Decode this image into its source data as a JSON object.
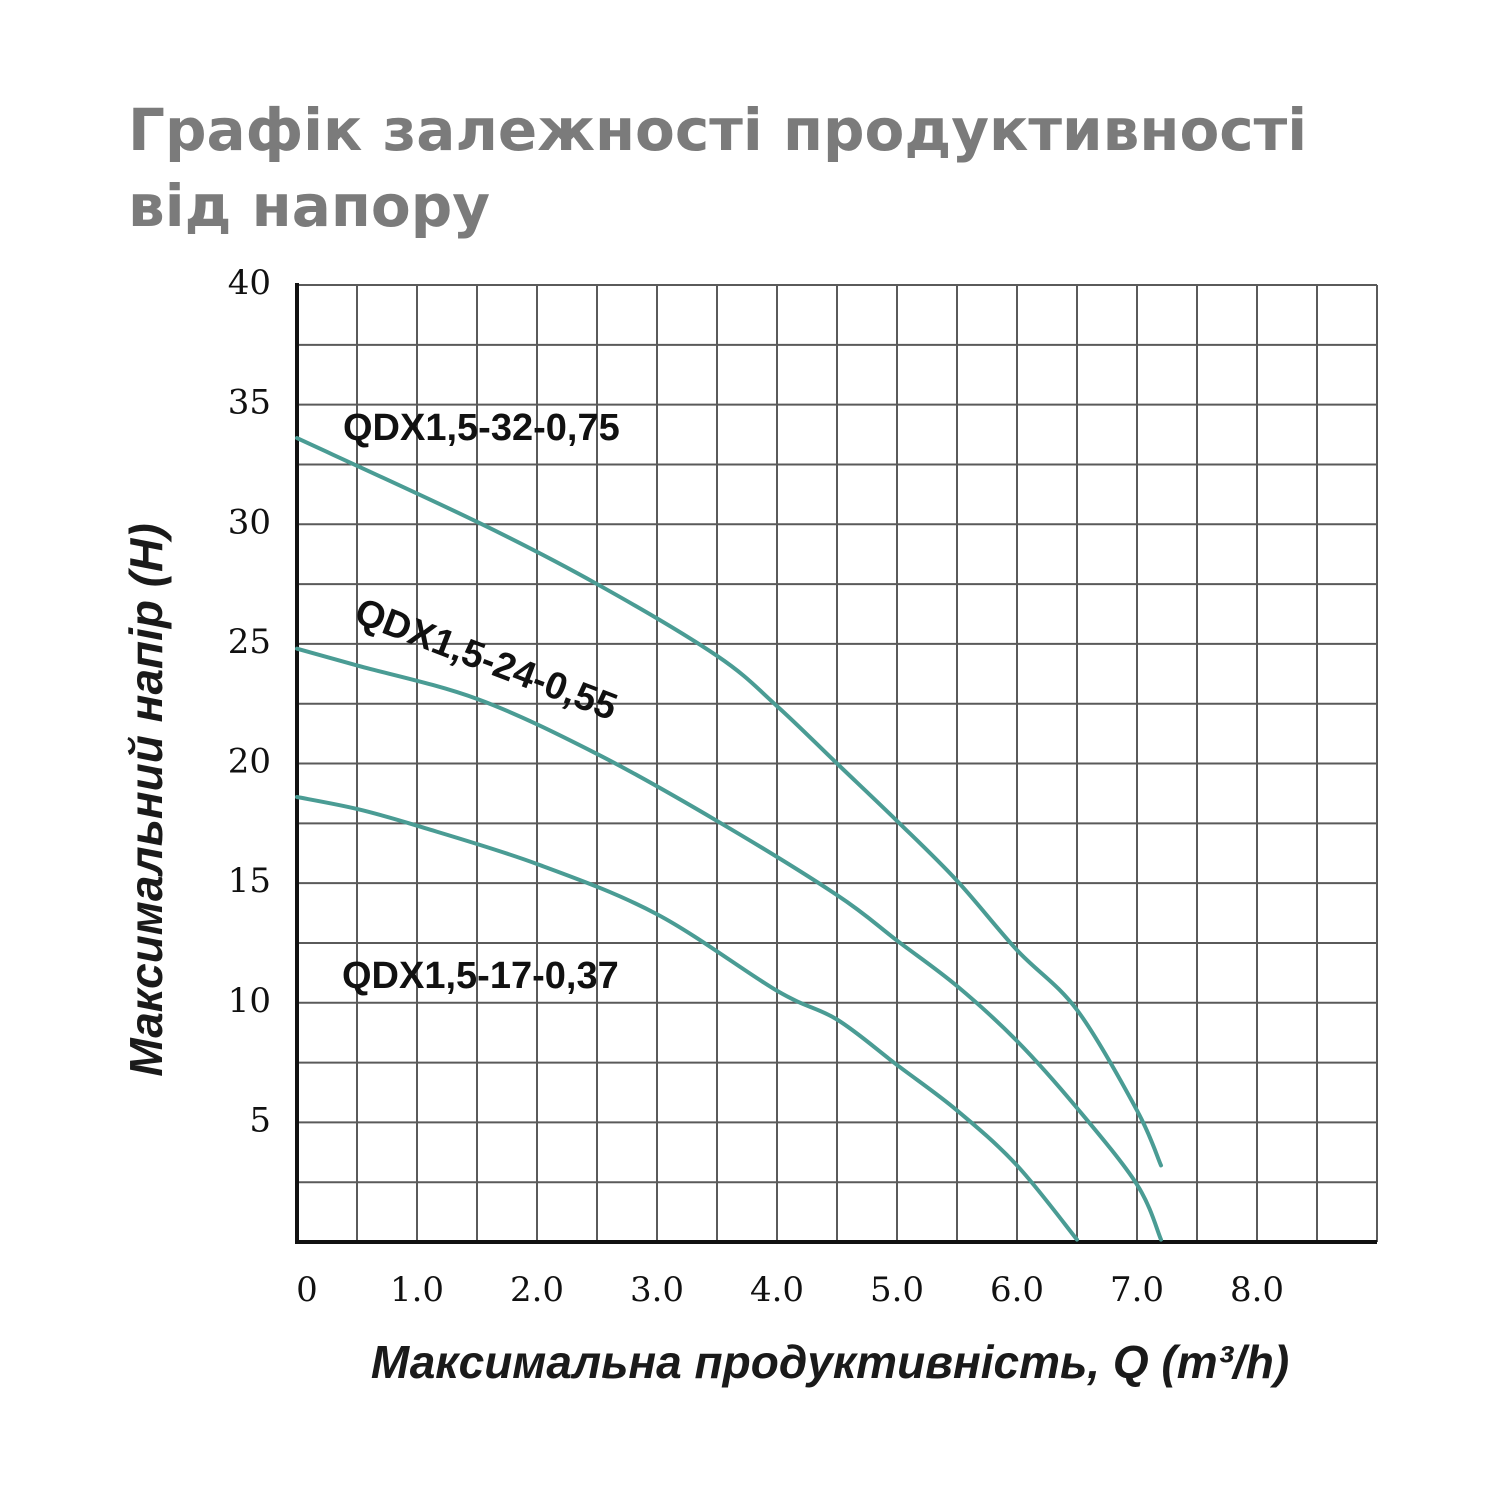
{
  "chart_data": {
    "type": "line",
    "title": "Графік залежності продуктивності від напору",
    "x_label": "Максимальна продуктивність, Q (m³/h)",
    "y_label": "Максимальний напір (H)",
    "xlim": [
      0,
      9
    ],
    "ylim": [
      0,
      40
    ],
    "xticks": [
      0,
      {
        "value": 1,
        "label": "1.0"
      },
      {
        "value": 2,
        "label": "2.0"
      },
      {
        "value": 3,
        "label": "3.0"
      },
      {
        "value": 4,
        "label": "4.0"
      },
      {
        "value": 5,
        "label": "5.0"
      },
      {
        "value": 6,
        "label": "6.0"
      },
      {
        "value": 7,
        "label": "7.0"
      },
      {
        "value": 8,
        "label": "8.0"
      }
    ],
    "yticks": [
      5,
      10,
      15,
      20,
      25,
      30,
      35,
      40
    ],
    "grid": true,
    "minor_grid": true,
    "series": [
      {
        "name": "QDX1,5-32-0,75",
        "color": "#4a9c94",
        "x": [
          0,
          1.5,
          2.5,
          3.5,
          4,
          4.5,
          5,
          5.5,
          6,
          6.5,
          7,
          7.2
        ],
        "values": [
          33.6,
          30.1,
          27.5,
          24.5,
          22.4,
          20.0,
          17.6,
          15.1,
          12.2,
          9.7,
          5.5,
          3.2
        ]
      },
      {
        "name": "QDX1,5-24-0,55",
        "color": "#4a9c94",
        "x": [
          0,
          0.5,
          1.5,
          2.5,
          3.5,
          4.5,
          5,
          5.5,
          6,
          6.5,
          7,
          7.2
        ],
        "values": [
          24.8,
          24.1,
          22.7,
          20.4,
          17.6,
          14.5,
          12.6,
          10.7,
          8.4,
          5.6,
          2.4,
          0.1
        ]
      },
      {
        "name": "QDX1,5-17-0,37",
        "color": "#4a9c94",
        "x": [
          0,
          0.5,
          1,
          2,
          3,
          4,
          4.5,
          5,
          5.5,
          6,
          6.5
        ],
        "values": [
          18.6,
          18.1,
          17.4,
          15.8,
          13.7,
          10.5,
          9.3,
          7.4,
          5.5,
          3.2,
          0.1
        ]
      }
    ]
  }
}
